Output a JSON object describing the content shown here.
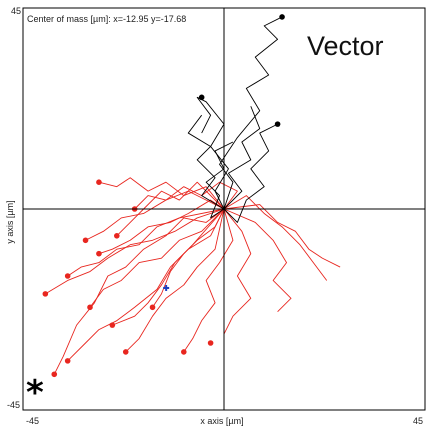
{
  "chart_data": {
    "type": "line",
    "title": "Vector",
    "annotation": "*",
    "center_of_mass": {
      "label": "Center of mass [µm]: x=-12.95 y=-17.68",
      "x": -12.95,
      "y": -17.68
    },
    "xlabel": "x axis [µm]",
    "ylabel": "y axis [µm]",
    "xlim": [
      -45,
      45
    ],
    "ylim": [
      -45,
      45
    ],
    "x_ticks": [
      {
        "value": -45,
        "label": "-45"
      },
      {
        "value": 45,
        "label": "45"
      }
    ],
    "y_ticks": [
      {
        "value": -45,
        "label": "-45"
      },
      {
        "value": 45,
        "label": "45"
      }
    ],
    "grid": false,
    "crosshair_at_origin": true,
    "series": [
      {
        "color": "#000000",
        "tracks": [
          [
            [
              0,
              0
            ],
            [
              2,
              6
            ],
            [
              -1,
              10
            ],
            [
              3,
              16
            ],
            [
              8,
              22
            ],
            [
              5,
              27
            ],
            [
              10,
              30
            ],
            [
              7,
              34
            ],
            [
              12,
              38
            ],
            [
              9,
              41
            ],
            [
              13,
              43
            ]
          ],
          [
            [
              0,
              0
            ],
            [
              -2,
              4
            ],
            [
              1,
              9
            ],
            [
              -3,
              14
            ],
            [
              0,
              19
            ],
            [
              -4,
              24
            ],
            [
              -6,
              25
            ],
            [
              -3,
              21
            ],
            [
              -5,
              17
            ]
          ],
          [
            [
              0,
              0
            ],
            [
              3,
              -3
            ],
            [
              5,
              2
            ],
            [
              9,
              5
            ],
            [
              6,
              9
            ],
            [
              10,
              13
            ],
            [
              8,
              17
            ],
            [
              12,
              19
            ]
          ],
          [
            [
              0,
              0
            ],
            [
              -5,
              3
            ],
            [
              -2,
              7
            ],
            [
              -6,
              11
            ],
            [
              -3,
              14
            ],
            [
              -8,
              17
            ],
            [
              -5,
              21
            ]
          ],
          [
            [
              0,
              0
            ],
            [
              4,
              4
            ],
            [
              1,
              8
            ],
            [
              6,
              11
            ],
            [
              4,
              15
            ],
            [
              8,
              18
            ],
            [
              6,
              23
            ]
          ],
          [
            [
              0,
              0
            ],
            [
              -3,
              -2
            ],
            [
              -1,
              3
            ],
            [
              -4,
              6
            ],
            [
              0,
              9
            ],
            [
              -2,
              13
            ],
            [
              2,
              15
            ]
          ]
        ],
        "endpoints": [
          [
            13,
            43
          ],
          [
            -5,
            25
          ],
          [
            12,
            19
          ]
        ]
      },
      {
        "color": "#e8261f",
        "tracks": [
          [
            [
              0,
              0
            ],
            [
              -4,
              -3
            ],
            [
              -9,
              -2
            ],
            [
              -13,
              -6
            ],
            [
              -18,
              -9
            ],
            [
              -22,
              -13
            ],
            [
              -26,
              -15
            ],
            [
              -29,
              -21
            ],
            [
              -33,
              -26
            ],
            [
              -36,
              -33
            ],
            [
              -38,
              -37
            ]
          ],
          [
            [
              0,
              0
            ],
            [
              -3,
              -6
            ],
            [
              -8,
              -9
            ],
            [
              -12,
              -13
            ],
            [
              -15,
              -18
            ],
            [
              -20,
              -22
            ],
            [
              -24,
              -25
            ],
            [
              -28,
              -27
            ],
            [
              -31,
              -30
            ],
            [
              -35,
              -34
            ]
          ],
          [
            [
              0,
              0
            ],
            [
              -6,
              -2
            ],
            [
              -11,
              -5
            ],
            [
              -16,
              -7
            ],
            [
              -21,
              -8
            ],
            [
              -26,
              -11
            ],
            [
              -30,
              -14
            ],
            [
              -35,
              -16
            ],
            [
              -40,
              -19
            ]
          ],
          [
            [
              0,
              0
            ],
            [
              -2,
              -9
            ],
            [
              -6,
              -13
            ],
            [
              -9,
              -17
            ],
            [
              -13,
              -20
            ],
            [
              -16,
              -24
            ],
            [
              -19,
              -29
            ],
            [
              -22,
              -32
            ]
          ],
          [
            [
              0,
              0
            ],
            [
              2,
              -7
            ],
            [
              -1,
              -12
            ],
            [
              -4,
              -16
            ],
            [
              -2,
              -21
            ],
            [
              -5,
              -25
            ],
            [
              -7,
              -29
            ],
            [
              -9,
              -32
            ]
          ],
          [
            [
              0,
              0
            ],
            [
              -8,
              4
            ],
            [
              -13,
              2
            ],
            [
              -18,
              -1
            ],
            [
              -23,
              -2
            ],
            [
              -27,
              -5
            ],
            [
              -31,
              -7
            ]
          ],
          [
            [
              0,
              0
            ],
            [
              -5,
              -5
            ],
            [
              -10,
              -7
            ],
            [
              -14,
              -11
            ],
            [
              -19,
              -12
            ],
            [
              -23,
              -16
            ],
            [
              -27,
              -18
            ],
            [
              -30,
              -22
            ]
          ],
          [
            [
              0,
              0
            ],
            [
              4,
              -5
            ],
            [
              6,
              -10
            ],
            [
              3,
              -15
            ],
            [
              6,
              -20
            ],
            [
              2,
              -24
            ],
            [
              0,
              -28
            ]
          ],
          [
            [
              0,
              0
            ],
            [
              7,
              -3
            ],
            [
              11,
              -7
            ],
            [
              14,
              -12
            ],
            [
              11,
              -16
            ],
            [
              15,
              -20
            ],
            [
              12,
              -23
            ]
          ],
          [
            [
              0,
              0
            ],
            [
              -10,
              -2
            ],
            [
              -15,
              -4
            ],
            [
              -19,
              -8
            ],
            [
              -24,
              -9
            ],
            [
              -28,
              -12
            ],
            [
              -32,
              -13
            ],
            [
              -35,
              -15
            ]
          ],
          [
            [
              0,
              0
            ],
            [
              -3,
              2
            ],
            [
              -8,
              -1
            ],
            [
              -12,
              -3
            ],
            [
              -17,
              -4
            ],
            [
              -21,
              -7
            ],
            [
              -25,
              -9
            ],
            [
              -28,
              -10
            ]
          ],
          [
            [
              0,
              0
            ],
            [
              5,
              3
            ],
            [
              9,
              -1
            ],
            [
              13,
              -4
            ],
            [
              17,
              -8
            ],
            [
              20,
              -12
            ],
            [
              23,
              -16
            ]
          ],
          [
            [
              0,
              0
            ],
            [
              -7,
              -8
            ],
            [
              -11,
              -12
            ],
            [
              -14,
              -17
            ],
            [
              -17,
              -21
            ],
            [
              -20,
              -24
            ],
            [
              -25,
              -26
            ]
          ],
          [
            [
              0,
              0
            ],
            [
              -2,
              -4
            ],
            [
              -6,
              -7
            ],
            [
              -9,
              -10
            ],
            [
              -12,
              -14
            ],
            [
              -14,
              -19
            ],
            [
              -16,
              -22
            ]
          ],
          [
            [
              0,
              0
            ],
            [
              3,
              4
            ],
            [
              -1,
              6
            ],
            [
              -5,
              3
            ],
            [
              -9,
              5
            ],
            [
              -13,
              2
            ],
            [
              -17,
              3
            ],
            [
              -20,
              0
            ]
          ],
          [
            [
              0,
              0
            ],
            [
              -4,
              5
            ],
            [
              -9,
              3
            ],
            [
              -13,
              6
            ],
            [
              -17,
              4
            ],
            [
              -21,
              7
            ],
            [
              -24,
              5
            ],
            [
              -28,
              6
            ]
          ],
          [
            [
              0,
              0
            ],
            [
              8,
              1
            ],
            [
              12,
              -3
            ],
            [
              16,
              -5
            ],
            [
              19,
              -9
            ],
            [
              22,
              -11
            ],
            [
              26,
              -13
            ]
          ],
          [
            [
              0,
              0
            ],
            [
              -6,
              6
            ],
            [
              -10,
              2
            ],
            [
              -14,
              4
            ],
            [
              -18,
              0
            ],
            [
              -21,
              -3
            ],
            [
              -24,
              -6
            ]
          ]
        ],
        "endpoints": [
          [
            -38,
            -37
          ],
          [
            -35,
            -34
          ],
          [
            -40,
            -19
          ],
          [
            -22,
            -32
          ],
          [
            -9,
            -32
          ],
          [
            -31,
            -7
          ],
          [
            -30,
            -22
          ],
          [
            -35,
            -15
          ],
          [
            -28,
            -10
          ],
          [
            -25,
            -26
          ],
          [
            -16,
            -22
          ],
          [
            -20,
            0
          ],
          [
            -28,
            6
          ],
          [
            -24,
            -6
          ],
          [
            -3,
            -30
          ]
        ]
      }
    ],
    "center_marker": {
      "color": "#1f3fbf"
    }
  }
}
